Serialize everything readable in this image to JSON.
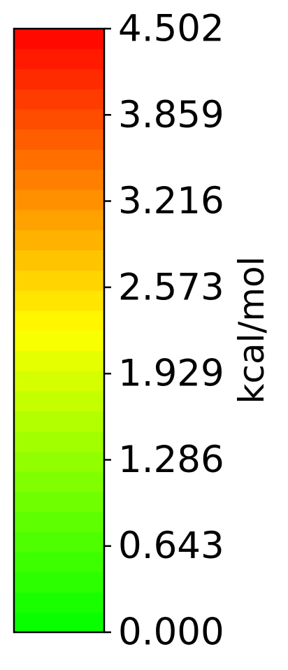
{
  "chart_data": {
    "type": "heatmap",
    "colormap": "green-yellow-red",
    "colormap_stops": [
      "#00ff00",
      "#ffff00",
      "#ff0000"
    ],
    "segments": 30,
    "range": [
      0.0,
      4.502
    ],
    "ticks": [
      {
        "value": 0.0,
        "label": "0.000"
      },
      {
        "value": 0.643,
        "label": "0.643"
      },
      {
        "value": 1.286,
        "label": "1.286"
      },
      {
        "value": 1.929,
        "label": "1.929"
      },
      {
        "value": 2.573,
        "label": "2.573"
      },
      {
        "value": 3.216,
        "label": "3.216"
      },
      {
        "value": 3.859,
        "label": "3.859"
      },
      {
        "value": 4.502,
        "label": "4.502"
      }
    ],
    "ylabel": "kcal/mol"
  }
}
